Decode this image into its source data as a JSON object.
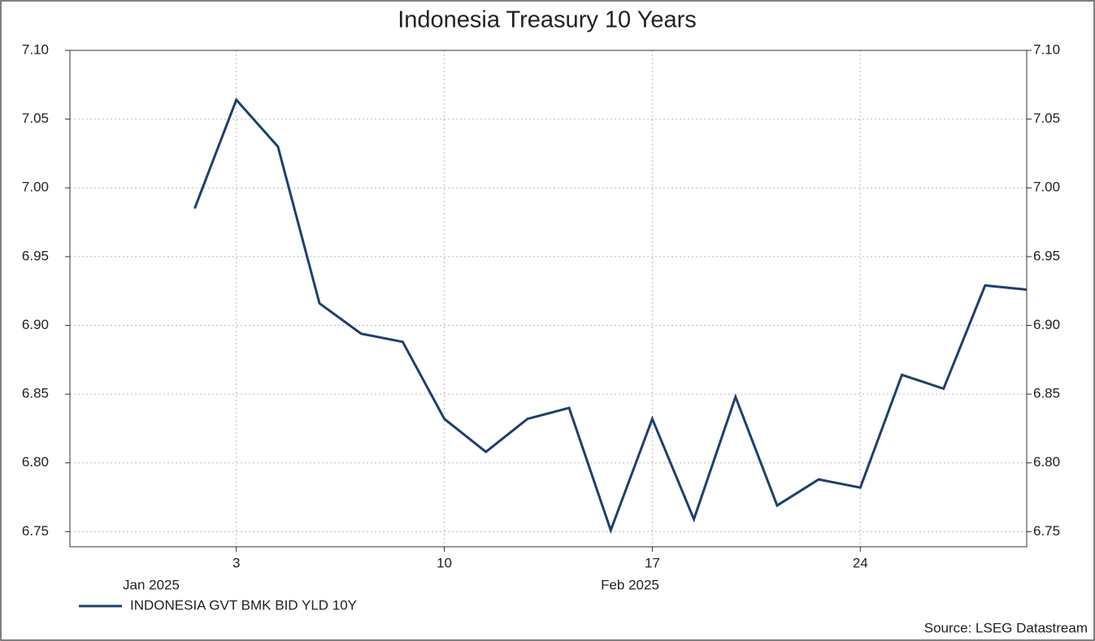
{
  "chart_data": {
    "type": "line",
    "title": "Indonesia Treasury 10 Years",
    "categories": [
      null,
      null,
      null,
      null,
      "3",
      null,
      null,
      null,
      null,
      "10",
      null,
      null,
      null,
      null,
      "17",
      null,
      null,
      null,
      null,
      "24",
      null,
      null,
      null,
      null
    ],
    "x_group_labels": [
      "Jan 2025",
      "Feb 2025"
    ],
    "series": [
      {
        "name": "INDONESIA GVT BMK BID YLD 10Y",
        "color": "#1f3f6e",
        "values": [
          null,
          null,
          null,
          6.985,
          7.064,
          7.03,
          6.916,
          6.894,
          6.888,
          6.832,
          6.808,
          6.832,
          6.84,
          6.751,
          6.832,
          6.759,
          6.848,
          6.769,
          6.788,
          6.782,
          6.864,
          6.854,
          6.929,
          6.926
        ]
      }
    ],
    "ylim": [
      6.739,
      7.1
    ],
    "yticks": [
      {
        "value": 6.75,
        "label": "6.75"
      },
      {
        "value": 6.8,
        "label": "6.80"
      },
      {
        "value": 6.85,
        "label": "6.85"
      },
      {
        "value": 6.9,
        "label": "6.90"
      },
      {
        "value": 6.95,
        "label": "6.95"
      },
      {
        "value": 7.0,
        "label": "7.00"
      },
      {
        "value": 7.05,
        "label": "7.05"
      },
      {
        "value": 7.1,
        "label": "7.10"
      }
    ],
    "grid": true,
    "legend": "bottom-left",
    "source": "Source: LSEG Datastream"
  }
}
